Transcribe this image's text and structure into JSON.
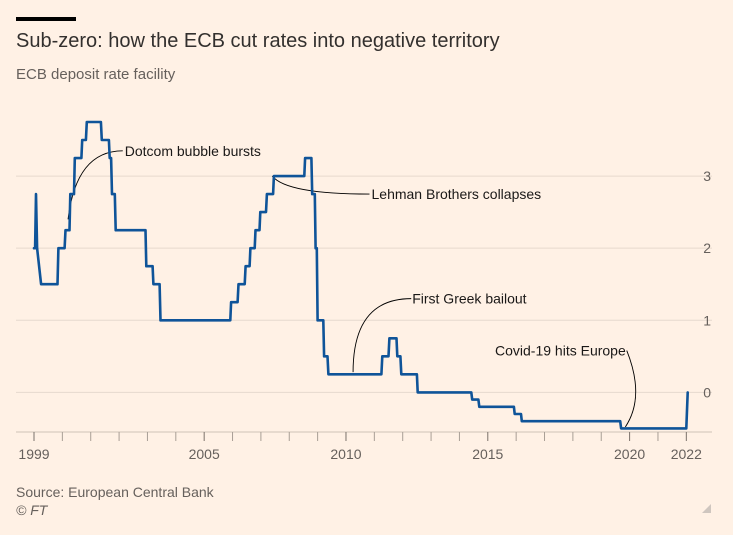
{
  "header": {
    "title": "Sub-zero: how the ECB cut rates into negative territory",
    "subtitle": "ECB deposit rate facility"
  },
  "footer": {
    "source": "Source: European Central Bank",
    "copyright": "© FT"
  },
  "colors": {
    "background": "#fff1e5",
    "line": "#0f5499",
    "grid": "#e6d9ce",
    "text": "#33302e",
    "muted": "#66605c"
  },
  "chart_data": {
    "type": "line",
    "title": "Sub-zero: how the ECB cut rates into negative territory",
    "subtitle": "ECB deposit rate facility",
    "xlabel": "",
    "ylabel": "",
    "xlim": [
      1999,
      2022.2
    ],
    "ylim": [
      -0.55,
      4.0
    ],
    "y_ticks": [
      0,
      1,
      2,
      3
    ],
    "x_tick_labels": [
      {
        "value": 1999,
        "label": "1999"
      },
      {
        "value": 2005,
        "label": "2005"
      },
      {
        "value": 2010,
        "label": "2010"
      },
      {
        "value": 2015,
        "label": "2015"
      },
      {
        "value": 2020,
        "label": "2020"
      },
      {
        "value": 2022,
        "label": "2022"
      }
    ],
    "minor_x_ticks": [
      2000,
      2001,
      2002,
      2003,
      2004,
      2006,
      2007,
      2008,
      2009,
      2011,
      2012,
      2013,
      2014,
      2016,
      2017,
      2018,
      2019,
      2021
    ],
    "series": [
      {
        "name": "ECB deposit rate facility",
        "x": [
          1999.0,
          1999.04,
          1999.07,
          1999.11,
          1999.25,
          1999.83,
          1999.86,
          2000.08,
          2000.11,
          2000.25,
          2000.28,
          2000.41,
          2000.44,
          2000.67,
          2000.7,
          2000.83,
          2000.86,
          2001.36,
          2001.39,
          2001.64,
          2001.67,
          2001.72,
          2001.75,
          2001.85,
          2001.88,
          2002.93,
          2002.96,
          2003.18,
          2003.21,
          2003.43,
          2003.46,
          2005.92,
          2005.95,
          2006.18,
          2006.21,
          2006.43,
          2006.46,
          2006.6,
          2006.63,
          2006.78,
          2006.81,
          2006.95,
          2006.98,
          2007.18,
          2007.21,
          2007.43,
          2007.46,
          2008.53,
          2008.56,
          2008.78,
          2008.81,
          2008.9,
          2008.93,
          2008.97,
          2009.0,
          2009.2,
          2009.23,
          2009.35,
          2009.38,
          2011.25,
          2011.28,
          2011.5,
          2011.53,
          2011.78,
          2011.81,
          2011.92,
          2011.95,
          2012.5,
          2012.53,
          2014.42,
          2014.45,
          2014.67,
          2014.7,
          2015.92,
          2015.95,
          2016.17,
          2016.2,
          2019.67,
          2019.7,
          2022.0,
          2022.05
        ],
        "y": [
          2.0,
          2.0,
          2.75,
          2.0,
          1.5,
          1.5,
          2.0,
          2.0,
          2.25,
          2.25,
          2.75,
          2.75,
          3.25,
          3.25,
          3.5,
          3.5,
          3.75,
          3.75,
          3.5,
          3.5,
          3.25,
          3.25,
          2.75,
          2.75,
          2.25,
          2.25,
          1.75,
          1.75,
          1.5,
          1.5,
          1.0,
          1.0,
          1.25,
          1.25,
          1.5,
          1.5,
          1.75,
          1.75,
          2.0,
          2.0,
          2.25,
          2.25,
          2.5,
          2.5,
          2.75,
          2.75,
          3.0,
          3.0,
          3.25,
          3.25,
          2.75,
          2.75,
          2.0,
          2.0,
          1.0,
          1.0,
          0.5,
          0.5,
          0.25,
          0.25,
          0.5,
          0.5,
          0.75,
          0.75,
          0.5,
          0.5,
          0.25,
          0.25,
          0.0,
          0.0,
          -0.1,
          -0.1,
          -0.2,
          -0.2,
          -0.3,
          -0.3,
          -0.4,
          -0.4,
          -0.5,
          -0.5,
          0.0
        ]
      }
    ],
    "annotations": [
      {
        "label": "Dotcom bubble bursts",
        "x": 2000.2,
        "y": 2.4,
        "label_x": 2002.2,
        "label_y": 3.35,
        "side": "right",
        "anchor": "start"
      },
      {
        "label": "Lehman Brothers collapses",
        "x": 2007.4,
        "y": 3.0,
        "label_x": 2010.9,
        "label_y": 2.75,
        "side": "right",
        "anchor": "start"
      },
      {
        "label": "First Greek bailout",
        "x": 2010.25,
        "y": 0.28,
        "label_x": 2012.3,
        "label_y": 1.3,
        "side": "top",
        "anchor": "start"
      },
      {
        "label": "Covid-19 hits Europe",
        "x": 2019.85,
        "y": -0.48,
        "label_x": 2019.9,
        "label_y": 0.58,
        "side": "left",
        "anchor": "end"
      }
    ]
  }
}
